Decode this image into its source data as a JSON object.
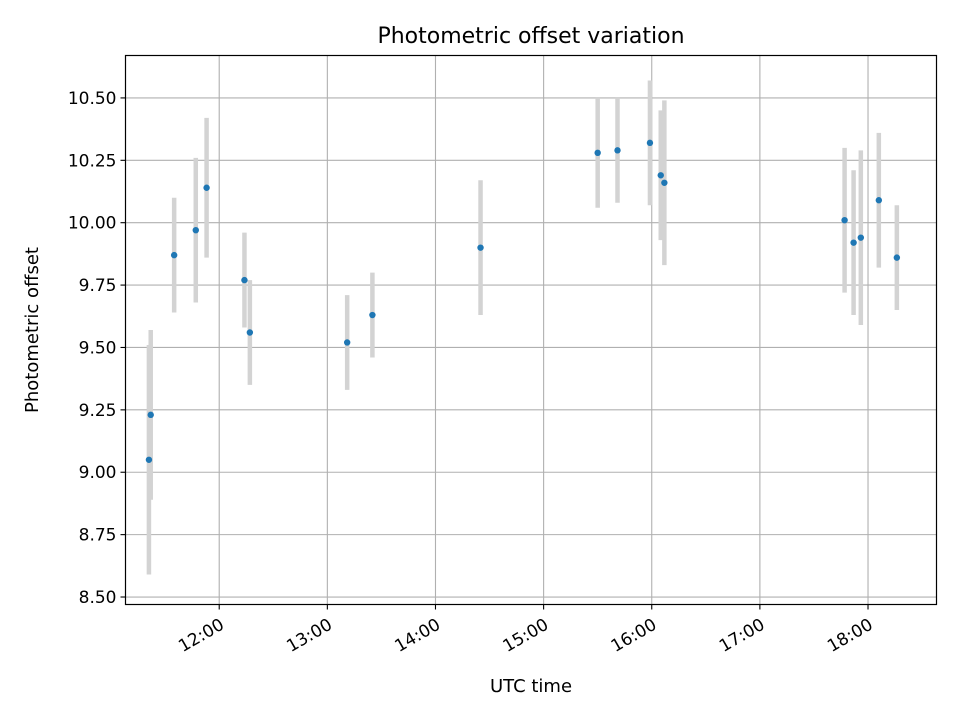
{
  "chart_data": {
    "type": "scatter",
    "title": "Photometric offset variation",
    "xlabel": "UTC time",
    "ylabel": "Photometric offset",
    "x_axis_type": "time",
    "xlim": [
      "11:08",
      "18:38"
    ],
    "ylim": [
      8.47,
      10.67
    ],
    "x_ticks": [
      "12:00",
      "13:00",
      "14:00",
      "15:00",
      "16:00",
      "17:00",
      "18:00"
    ],
    "y_ticks": [
      "8.50",
      "8.75",
      "9.00",
      "9.25",
      "9.50",
      "9.75",
      "10.00",
      "10.25",
      "10.50"
    ],
    "grid": true,
    "point_color": "#1f77b4",
    "errorbar_color": "#d3d3d3",
    "points": [
      {
        "x": "11:21",
        "y": 9.05,
        "err": 0.46
      },
      {
        "x": "11:22",
        "y": 9.23,
        "err": 0.34
      },
      {
        "x": "11:35",
        "y": 9.87,
        "err": 0.23
      },
      {
        "x": "11:47",
        "y": 9.97,
        "err": 0.29
      },
      {
        "x": "11:53",
        "y": 10.14,
        "err": 0.28
      },
      {
        "x": "12:14",
        "y": 9.77,
        "err": 0.19
      },
      {
        "x": "12:17",
        "y": 9.56,
        "err": 0.21
      },
      {
        "x": "13:11",
        "y": 9.52,
        "err": 0.19
      },
      {
        "x": "13:25",
        "y": 9.63,
        "err": 0.17
      },
      {
        "x": "14:25",
        "y": 9.9,
        "err": 0.27
      },
      {
        "x": "15:30",
        "y": 10.28,
        "err": 0.22
      },
      {
        "x": "15:41",
        "y": 10.29,
        "err": 0.21
      },
      {
        "x": "15:59",
        "y": 10.32,
        "err": 0.25
      },
      {
        "x": "16:05",
        "y": 10.19,
        "err": 0.26
      },
      {
        "x": "16:07",
        "y": 10.16,
        "err": 0.33
      },
      {
        "x": "17:47",
        "y": 10.01,
        "err": 0.29
      },
      {
        "x": "17:52",
        "y": 9.92,
        "err": 0.29
      },
      {
        "x": "17:56",
        "y": 9.94,
        "err": 0.35
      },
      {
        "x": "18:06",
        "y": 10.09,
        "err": 0.27
      },
      {
        "x": "18:16",
        "y": 9.86,
        "err": 0.21
      }
    ]
  }
}
